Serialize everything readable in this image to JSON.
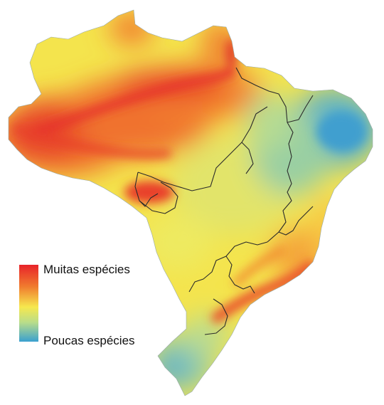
{
  "legend": {
    "high_label": "Muitas espécies",
    "low_label": "Poucas espécies",
    "gradient": [
      "#e8232a",
      "#f07a2e",
      "#f6e84e",
      "#b9dd8a",
      "#3aa0cf"
    ]
  },
  "colors": {
    "many": "#e63d22",
    "mid": "#f4e64c",
    "few": "#4aa7cd",
    "border": "#2a2a2a"
  }
}
